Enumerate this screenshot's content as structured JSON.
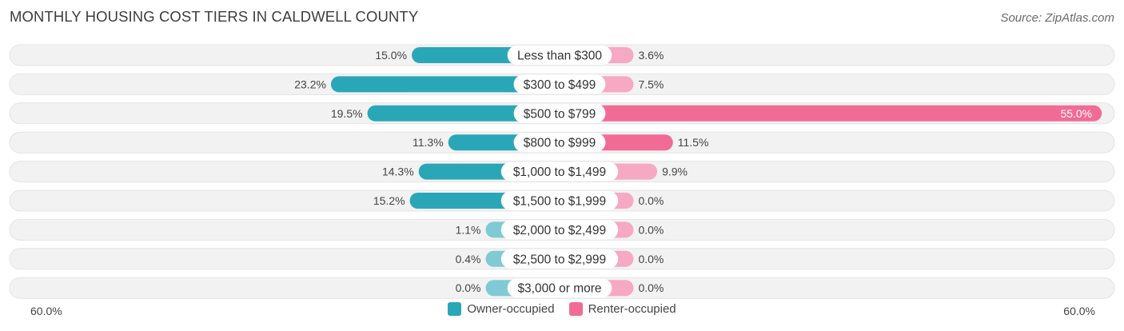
{
  "header": {
    "title": "MONTHLY HOUSING COST TIERS IN CALDWELL COUNTY",
    "source": "Source: ZipAtlas.com"
  },
  "axis": {
    "left_label": "60.0%",
    "right_label": "60.0%"
  },
  "legend": {
    "owner_label": "Owner-occupied",
    "renter_label": "Renter-occupied"
  },
  "colors": {
    "owner_strong": "#2aa7b7",
    "owner_light": "#7fcad4",
    "renter_strong": "#f06b95",
    "renter_light": "#f7a8c2",
    "row_bg": "#f1f1f1"
  },
  "chart_data": {
    "type": "bar",
    "title": "MONTHLY HOUSING COST TIERS IN CALDWELL COUNTY",
    "orientation": "horizontal-diverging",
    "xlim": [
      -60,
      60
    ],
    "categories": [
      "Less than $300",
      "$300 to $499",
      "$500 to $799",
      "$800 to $999",
      "$1,000 to $1,499",
      "$1,500 to $1,999",
      "$2,000 to $2,499",
      "$2,500 to $2,999",
      "$3,000 or more"
    ],
    "series": [
      {
        "name": "Owner-occupied",
        "values": [
          15.0,
          23.2,
          19.5,
          11.3,
          14.3,
          15.2,
          1.1,
          0.4,
          0.0
        ],
        "labels": [
          "15.0%",
          "23.2%",
          "19.5%",
          "11.3%",
          "14.3%",
          "15.2%",
          "1.1%",
          "0.4%",
          "0.0%"
        ]
      },
      {
        "name": "Renter-occupied",
        "values": [
          3.6,
          7.5,
          55.0,
          11.5,
          9.9,
          0.0,
          0.0,
          0.0,
          0.0
        ],
        "labels": [
          "3.6%",
          "7.5%",
          "55.0%",
          "11.5%",
          "9.9%",
          "0.0%",
          "0.0%",
          "0.0%",
          "0.0%"
        ]
      }
    ],
    "legend_position": "bottom-center"
  }
}
